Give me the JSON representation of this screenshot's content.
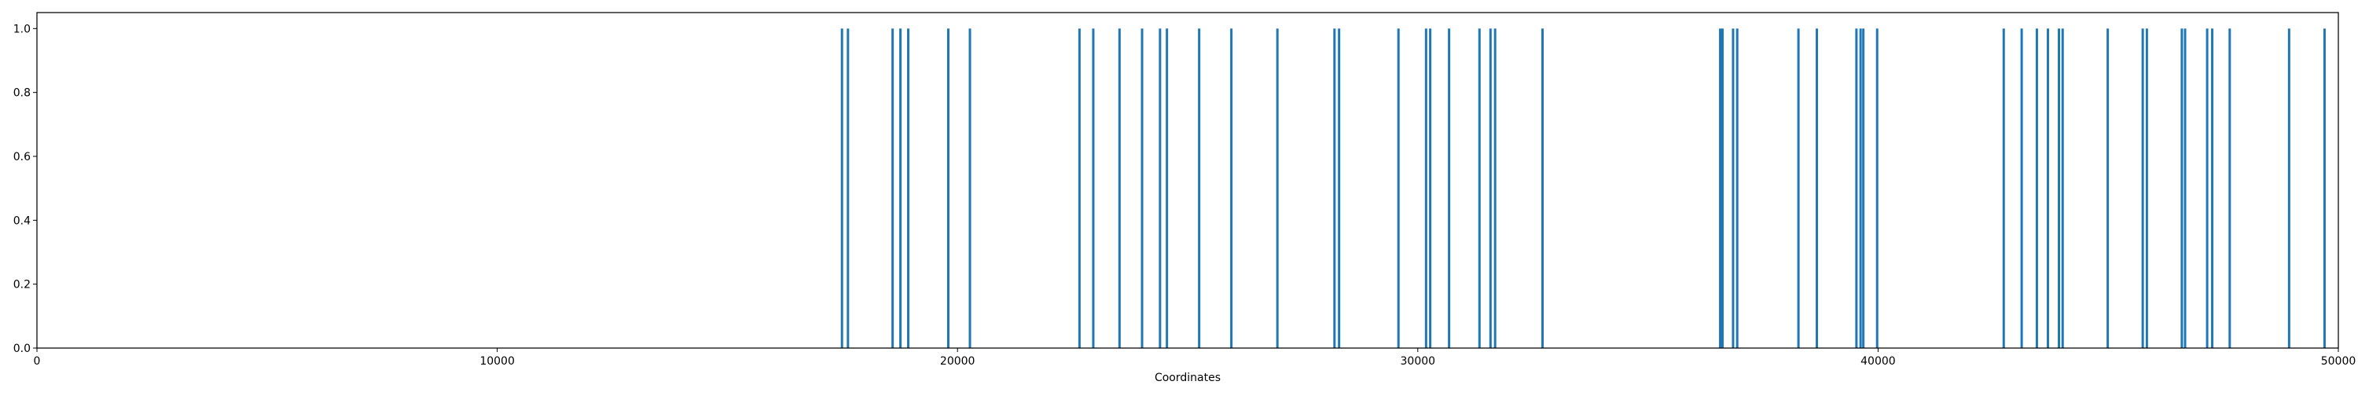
{
  "chart_data": {
    "type": "bar",
    "title": "",
    "xlabel": "Coordinates",
    "ylabel": "",
    "xlim": [
      0,
      50000
    ],
    "ylim": [
      0.0,
      1.05
    ],
    "grid": false,
    "bar_color": "#1f77b4",
    "x_ticks": [
      "0",
      "10000",
      "20000",
      "30000",
      "40000",
      "50000"
    ],
    "y_ticks": [
      "0.0",
      "0.2",
      "0.4",
      "0.6",
      "0.8",
      "1.0"
    ],
    "series": [
      {
        "x": [
          17490,
          17620,
          18590,
          18760,
          18930,
          19800,
          20270,
          22650,
          22950,
          23520,
          24010,
          24400,
          24550,
          25250,
          25950,
          26950,
          28190,
          28290,
          29580,
          30180,
          30270,
          30680,
          31340,
          31580,
          31680,
          32710,
          36570,
          36620,
          36850,
          36940,
          38270,
          38670,
          39530,
          39620,
          39680,
          39980,
          42730,
          43120,
          43450,
          43690,
          43930,
          44010,
          44990,
          45750,
          45840,
          46600,
          46670,
          47150,
          47260,
          47640,
          48930,
          49700
        ],
        "values": [
          1,
          1,
          1,
          1,
          1,
          1,
          1,
          1,
          1,
          1,
          1,
          1,
          1,
          1,
          1,
          1,
          1,
          1,
          1,
          1,
          1,
          1,
          1,
          1,
          1,
          1,
          1,
          1,
          1,
          1,
          1,
          1,
          1,
          1,
          1,
          1,
          1,
          1,
          1,
          1,
          1,
          1,
          1,
          1,
          1,
          1,
          1,
          1,
          1,
          1,
          1,
          1
        ]
      }
    ]
  }
}
